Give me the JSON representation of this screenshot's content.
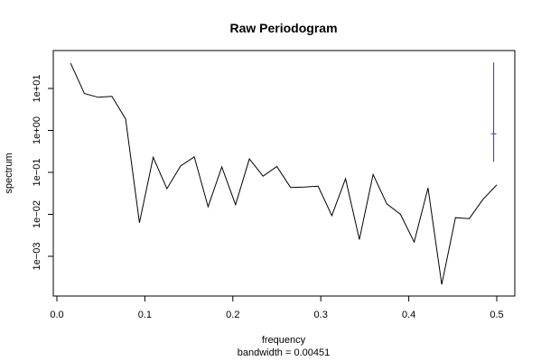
{
  "chart_data": {
    "type": "line",
    "title": "Raw Periodogram",
    "xlabel": "frequency",
    "ylabel": "spectrum",
    "subtitle": "bandwidth = 0.00451",
    "log_y": true,
    "grid": false,
    "legend": "none",
    "xlim": [
      0,
      0.5
    ],
    "ylim_log10": [
      -4.1,
      1.7
    ],
    "x_ticks": [
      {
        "value": 0.0,
        "label": "0.0"
      },
      {
        "value": 0.1,
        "label": "0.1"
      },
      {
        "value": 0.2,
        "label": "0.2"
      },
      {
        "value": 0.3,
        "label": "0.3"
      },
      {
        "value": 0.4,
        "label": "0.4"
      },
      {
        "value": 0.5,
        "label": "0.5"
      }
    ],
    "y_ticks": [
      {
        "log10": 1,
        "label": "1e+01"
      },
      {
        "log10": 0,
        "label": "1e+00"
      },
      {
        "log10": -1,
        "label": "1e−01"
      },
      {
        "log10": -2,
        "label": "1e−02"
      },
      {
        "log10": -3,
        "label": "1e−03"
      }
    ],
    "series": [
      {
        "color": "#000000",
        "x": [
          0.0156,
          0.0312,
          0.0469,
          0.0625,
          0.0781,
          0.0938,
          0.1094,
          0.125,
          0.1406,
          0.1562,
          0.1719,
          0.1875,
          0.2031,
          0.2188,
          0.2344,
          0.25,
          0.2656,
          0.2812,
          0.2969,
          0.3125,
          0.3281,
          0.3438,
          0.3594,
          0.375,
          0.3906,
          0.4062,
          0.4219,
          0.4375,
          0.4531,
          0.4688,
          0.4844,
          0.5
        ],
        "y_log10": [
          1.6,
          0.88,
          0.79,
          0.81,
          0.27,
          -2.2,
          -0.64,
          -1.39,
          -0.85,
          -0.63,
          -1.82,
          -0.87,
          -1.77,
          -0.68,
          -1.09,
          -0.86,
          -1.36,
          -1.35,
          -1.33,
          -2.03,
          -1.15,
          -2.6,
          -1.05,
          -1.75,
          -2.0,
          -2.66,
          -1.37,
          -3.67,
          -2.08,
          -2.1,
          -1.64,
          -1.3
        ]
      }
    ],
    "bandwidth_marker": {
      "color": "#3333cc",
      "x": 0.4965,
      "center_log10": -0.08,
      "upper_log10": 1.62,
      "lower_log10": -0.75
    }
  }
}
